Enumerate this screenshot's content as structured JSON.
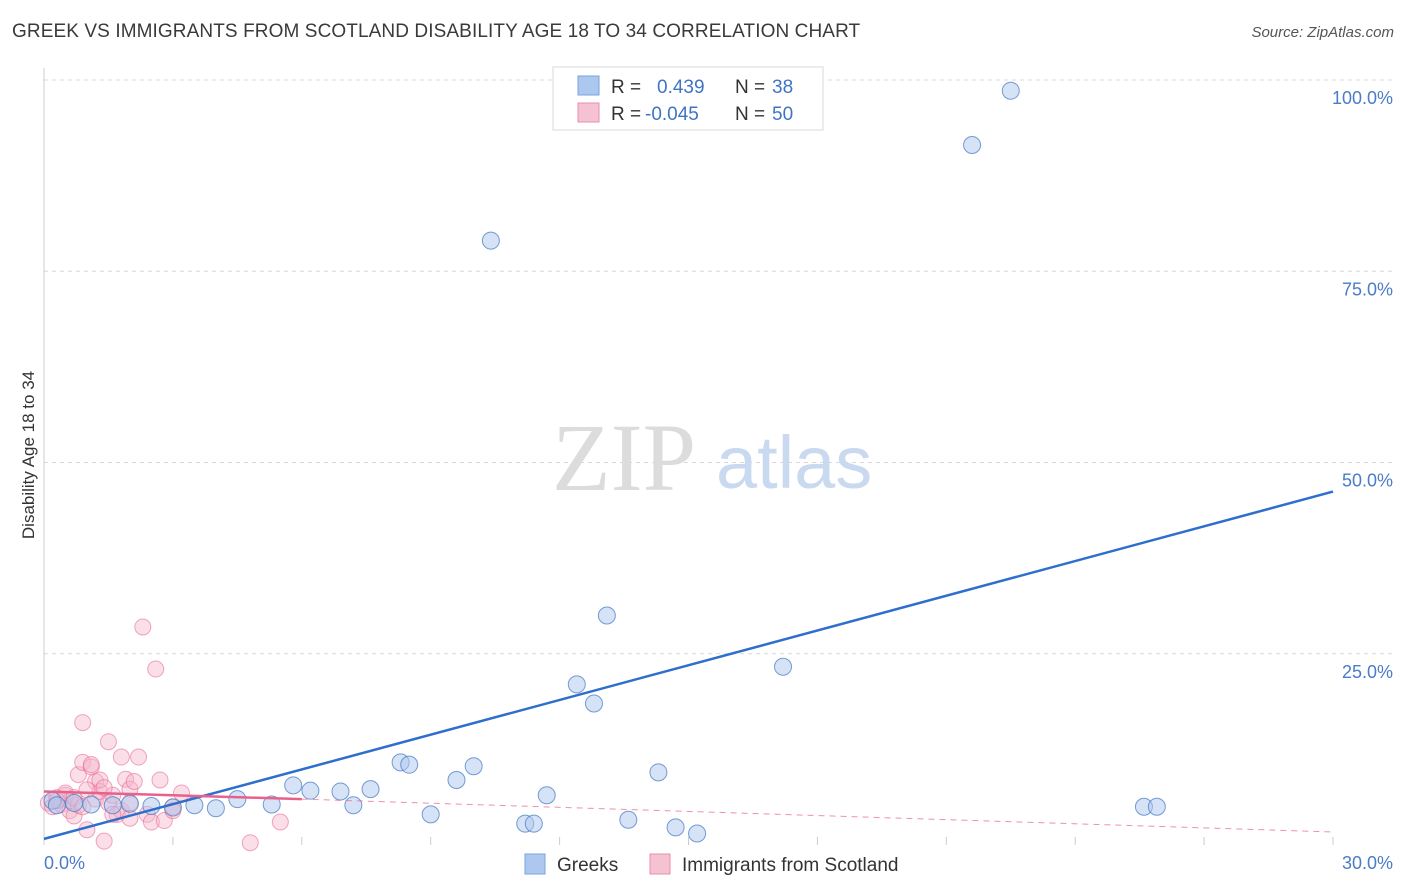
{
  "title": "GREEK VS IMMIGRANTS FROM SCOTLAND DISABILITY AGE 18 TO 34 CORRELATION CHART",
  "source": "Source: ZipAtlas.com",
  "watermark": {
    "zip": "ZIP",
    "atlas": "atlas"
  },
  "colors": {
    "blue": "#4a7cc7",
    "blue_fill": "#adc8ee",
    "blue_line": "#2f6fcc",
    "pink": "#e8608c",
    "pink_fill": "#f5b8cb",
    "pink_line": "#e8608c",
    "grid": "#d8d8d8"
  },
  "legend": {
    "row1": {
      "r_label": "R =",
      "r_value": "0.439",
      "n_label": "N =",
      "n_value": "38"
    },
    "row2": {
      "r_label": "R =",
      "r_value": "-0.045",
      "n_label": "N =",
      "n_value": "50"
    }
  },
  "chart_data": {
    "type": "scatter",
    "title": "GREEK VS IMMIGRANTS FROM SCOTLAND DISABILITY AGE 18 TO 34 CORRELATION CHART",
    "xlabel": "",
    "ylabel": "Disability Age 18 to 34",
    "xlim": [
      0,
      30
    ],
    "ylim": [
      0,
      100
    ],
    "x_tick_labels": [
      "0.0%",
      "30.0%"
    ],
    "y_ticks": [
      25,
      50,
      75,
      100
    ],
    "y_tick_labels": [
      "25.0%",
      "50.0%",
      "75.0%",
      "100.0%"
    ],
    "grid": true,
    "legend_position": "top-center",
    "series": [
      {
        "name": "Greeks",
        "color": "#4a7cc7",
        "trendline": {
          "x": [
            0,
            30
          ],
          "y": [
            0.8,
            46.2
          ]
        },
        "points": [
          [
            0.2,
            5.8
          ],
          [
            0.3,
            5.2
          ],
          [
            0.7,
            5.5
          ],
          [
            1.1,
            5.3
          ],
          [
            1.6,
            5.2
          ],
          [
            2.0,
            5.4
          ],
          [
            2.5,
            5.1
          ],
          [
            3.0,
            4.9
          ],
          [
            3.5,
            5.2
          ],
          [
            4.0,
            4.8
          ],
          [
            4.5,
            6.0
          ],
          [
            5.3,
            5.3
          ],
          [
            5.8,
            7.8
          ],
          [
            6.2,
            7.1
          ],
          [
            6.9,
            7.0
          ],
          [
            7.2,
            5.2
          ],
          [
            7.6,
            7.3
          ],
          [
            8.3,
            10.8
          ],
          [
            8.5,
            10.5
          ],
          [
            9.0,
            4.0
          ],
          [
            9.6,
            8.5
          ],
          [
            10.0,
            10.3
          ],
          [
            10.4,
            79.0
          ],
          [
            11.2,
            2.8
          ],
          [
            11.4,
            2.8
          ],
          [
            11.7,
            6.5
          ],
          [
            12.4,
            21.0
          ],
          [
            12.8,
            18.5
          ],
          [
            13.1,
            30.0
          ],
          [
            13.6,
            3.3
          ],
          [
            14.3,
            9.5
          ],
          [
            14.7,
            2.3
          ],
          [
            15.2,
            1.5
          ],
          [
            17.2,
            23.3
          ],
          [
            21.6,
            91.5
          ],
          [
            22.5,
            98.6
          ],
          [
            25.6,
            5.0
          ],
          [
            25.9,
            5.0
          ]
        ]
      },
      {
        "name": "Immigrants from Scotland",
        "color": "#e8608c",
        "trendline": {
          "x": [
            0,
            6
          ],
          "y": [
            7.0,
            6.0
          ]
        },
        "trendline_ext": {
          "x": [
            6,
            30
          ],
          "y": [
            6.0,
            1.7
          ]
        },
        "points": [
          [
            0.1,
            5.5
          ],
          [
            0.2,
            5.0
          ],
          [
            0.3,
            6.2
          ],
          [
            0.4,
            5.3
          ],
          [
            0.5,
            6.5
          ],
          [
            0.6,
            4.5
          ],
          [
            0.6,
            5.8
          ],
          [
            0.7,
            3.8
          ],
          [
            0.8,
            5.2
          ],
          [
            0.8,
            9.2
          ],
          [
            0.9,
            10.8
          ],
          [
            0.9,
            16.0
          ],
          [
            1.0,
            2.0
          ],
          [
            1.1,
            10.2
          ],
          [
            1.1,
            10.5
          ],
          [
            1.2,
            8.3
          ],
          [
            1.2,
            6.0
          ],
          [
            1.3,
            7.0
          ],
          [
            1.3,
            8.5
          ],
          [
            1.4,
            0.5
          ],
          [
            1.5,
            13.5
          ],
          [
            1.5,
            5.5
          ],
          [
            1.6,
            6.5
          ],
          [
            1.7,
            4.0
          ],
          [
            1.8,
            4.5
          ],
          [
            1.8,
            11.5
          ],
          [
            1.9,
            8.6
          ],
          [
            2.0,
            7.3
          ],
          [
            2.0,
            3.5
          ],
          [
            2.1,
            8.3
          ],
          [
            2.2,
            11.5
          ],
          [
            2.3,
            28.5
          ],
          [
            2.4,
            4.0
          ],
          [
            2.5,
            3.0
          ],
          [
            2.6,
            23.0
          ],
          [
            2.7,
            8.5
          ],
          [
            2.8,
            3.2
          ],
          [
            3.0,
            5.0
          ],
          [
            3.2,
            6.8
          ],
          [
            4.8,
            0.3
          ],
          [
            5.5,
            3.0
          ],
          [
            0.3,
            5.8
          ],
          [
            0.5,
            6.8
          ],
          [
            0.7,
            6.2
          ],
          [
            0.9,
            5.0
          ],
          [
            1.0,
            7.2
          ],
          [
            1.4,
            7.5
          ],
          [
            1.6,
            4.0
          ],
          [
            2.0,
            5.5
          ],
          [
            3.0,
            4.5
          ]
        ]
      }
    ]
  },
  "bottom_legend": {
    "greeks": "Greeks",
    "scotland": "Immigrants from Scotland"
  }
}
